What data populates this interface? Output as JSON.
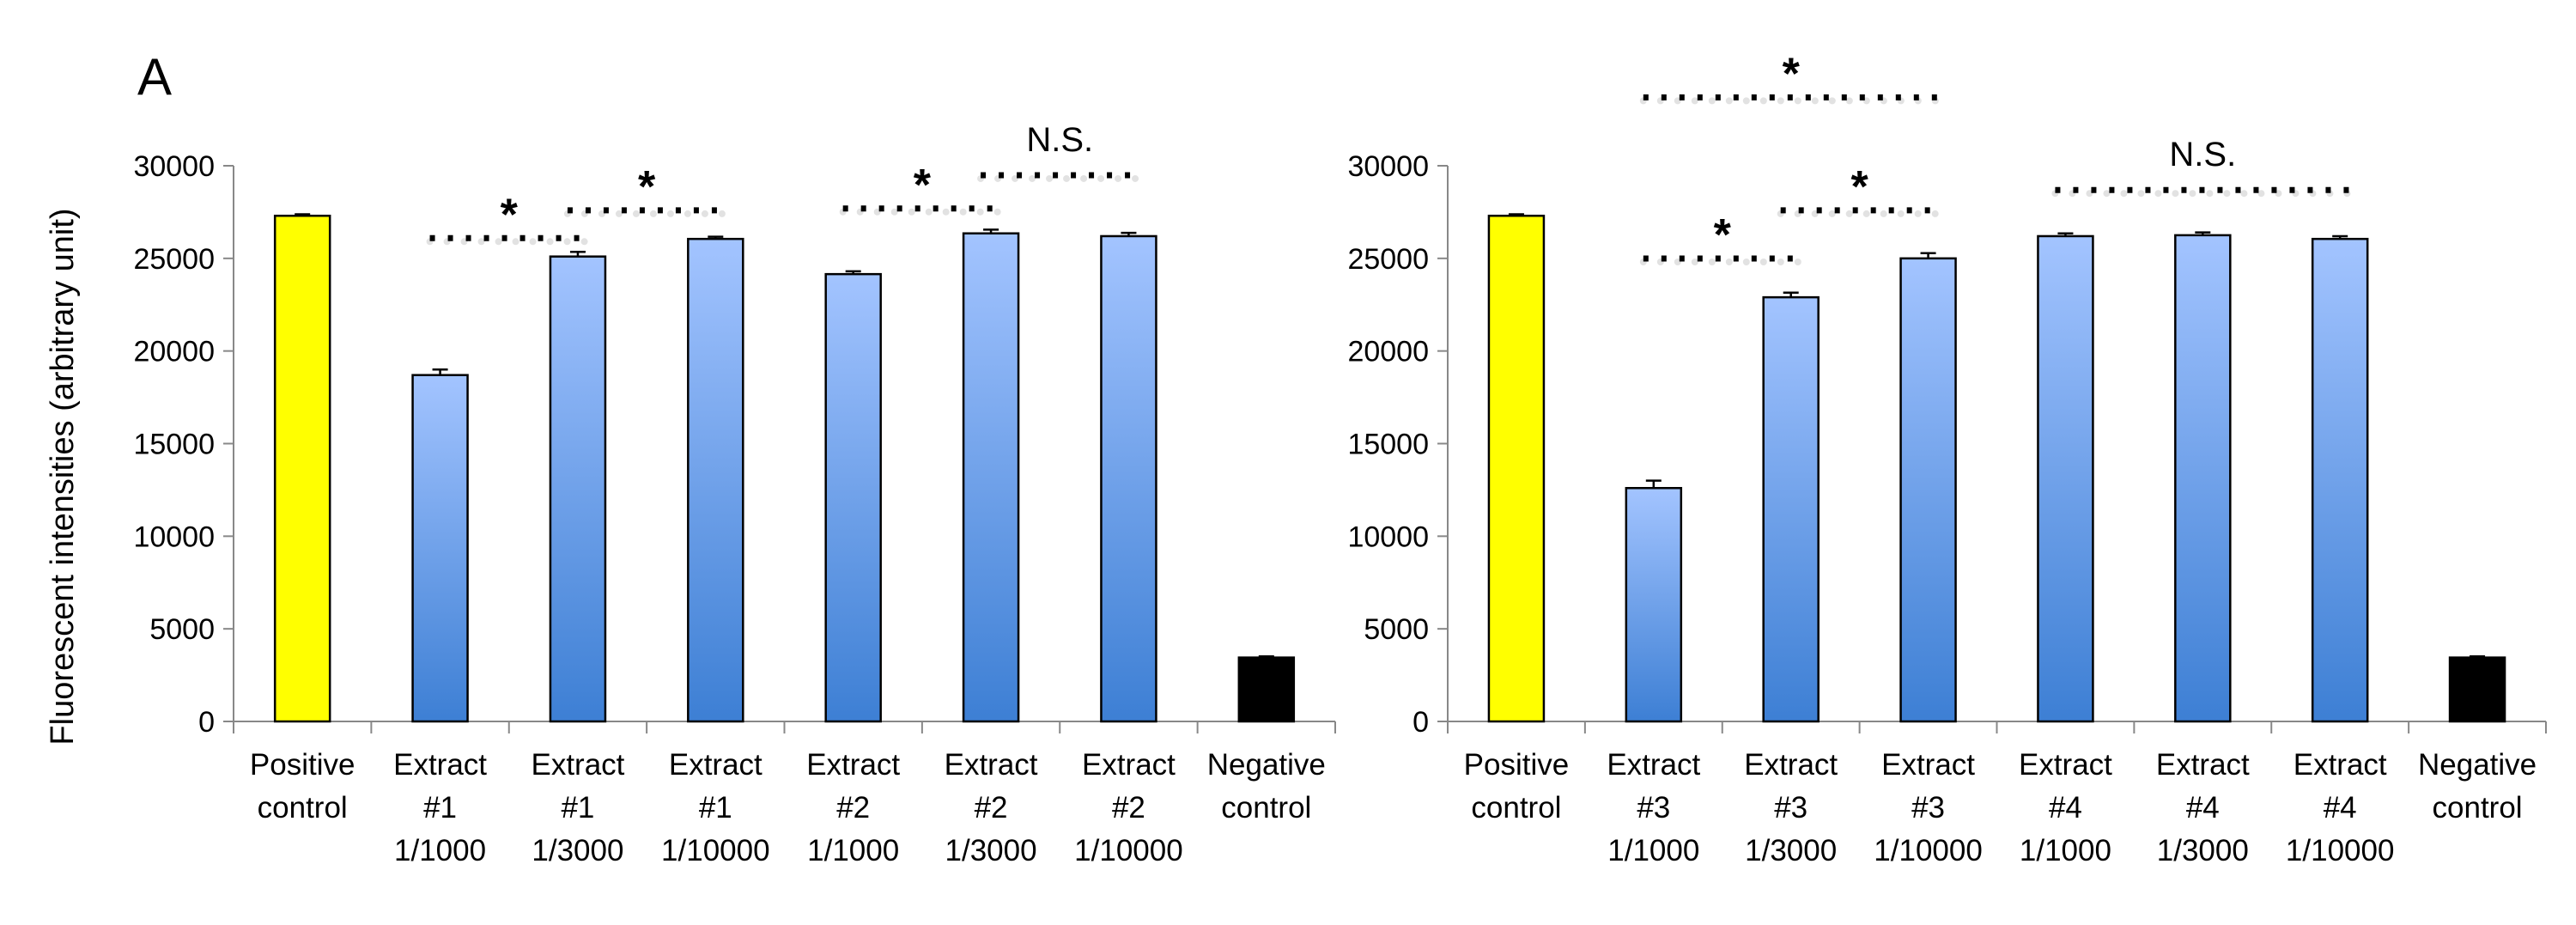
{
  "figure": {
    "panel_label": "A",
    "ylabel": "Fluorescent intensities (arbitrary unit)"
  },
  "colors": {
    "positive": "#ffff00",
    "negative": "#000000",
    "extract_top": "#a3c4ff",
    "extract_bottom": "#3d7fd4",
    "axis": "#888888"
  },
  "chart_data": [
    {
      "type": "bar",
      "title": "",
      "ylabel": "Fluorescent intensities (arbitrary unit)",
      "ylim": [
        0,
        30000
      ],
      "yticks": [
        0,
        5000,
        10000,
        15000,
        20000,
        25000,
        30000
      ],
      "categories": [
        [
          "Positive",
          "control"
        ],
        [
          "Extract",
          "#1",
          "1/1000"
        ],
        [
          "Extract",
          "#1",
          "1/3000"
        ],
        [
          "Extract",
          "#1",
          "1/10000"
        ],
        [
          "Extract",
          "#2",
          "1/1000"
        ],
        [
          "Extract",
          "#2",
          "1/3000"
        ],
        [
          "Extract",
          "#2",
          "1/10000"
        ],
        [
          "Negative",
          "control"
        ]
      ],
      "values": [
        27300,
        18700,
        25100,
        26050,
        24150,
        26350,
        26200,
        3450
      ],
      "errors": [
        80,
        300,
        250,
        120,
        150,
        200,
        180,
        60
      ],
      "bar_kinds": [
        "positive",
        "extract",
        "extract",
        "extract",
        "extract",
        "extract",
        "extract",
        "negative"
      ],
      "annotations": [
        {
          "from": 1,
          "to": 2,
          "level": 26000,
          "label": "*"
        },
        {
          "from": 2,
          "to": 3,
          "level": 27500,
          "label": "*"
        },
        {
          "from": 4,
          "to": 5,
          "level": 27600,
          "label": "*"
        },
        {
          "from": 5,
          "to": 6,
          "level": 29400,
          "label": "N.S."
        }
      ]
    },
    {
      "type": "bar",
      "title": "",
      "ylabel": "",
      "ylim": [
        0,
        30000
      ],
      "yticks": [
        0,
        5000,
        10000,
        15000,
        20000,
        25000,
        30000
      ],
      "categories": [
        [
          "Positive",
          "control"
        ],
        [
          "Extract",
          "#3",
          "1/1000"
        ],
        [
          "Extract",
          "#3",
          "1/3000"
        ],
        [
          "Extract",
          "#3",
          "1/10000"
        ],
        [
          "Extract",
          "#4",
          "1/1000"
        ],
        [
          "Extract",
          "#4",
          "1/3000"
        ],
        [
          "Extract",
          "#4",
          "1/10000"
        ],
        [
          "Negative",
          "control"
        ]
      ],
      "values": [
        27300,
        12600,
        22900,
        25000,
        26200,
        26250,
        26050,
        3450
      ],
      "errors": [
        80,
        400,
        250,
        280,
        150,
        150,
        150,
        60
      ],
      "bar_kinds": [
        "positive",
        "extract",
        "extract",
        "extract",
        "extract",
        "extract",
        "extract",
        "negative"
      ],
      "annotations": [
        {
          "from": 1,
          "to": 3,
          "level": 33600,
          "label": "*"
        },
        {
          "from": 1,
          "to": 2,
          "level": 24900,
          "label": "*"
        },
        {
          "from": 2,
          "to": 3,
          "level": 27500,
          "label": "*"
        },
        {
          "from": 4,
          "to": 6,
          "level": 28600,
          "label": "N.S."
        }
      ]
    }
  ]
}
